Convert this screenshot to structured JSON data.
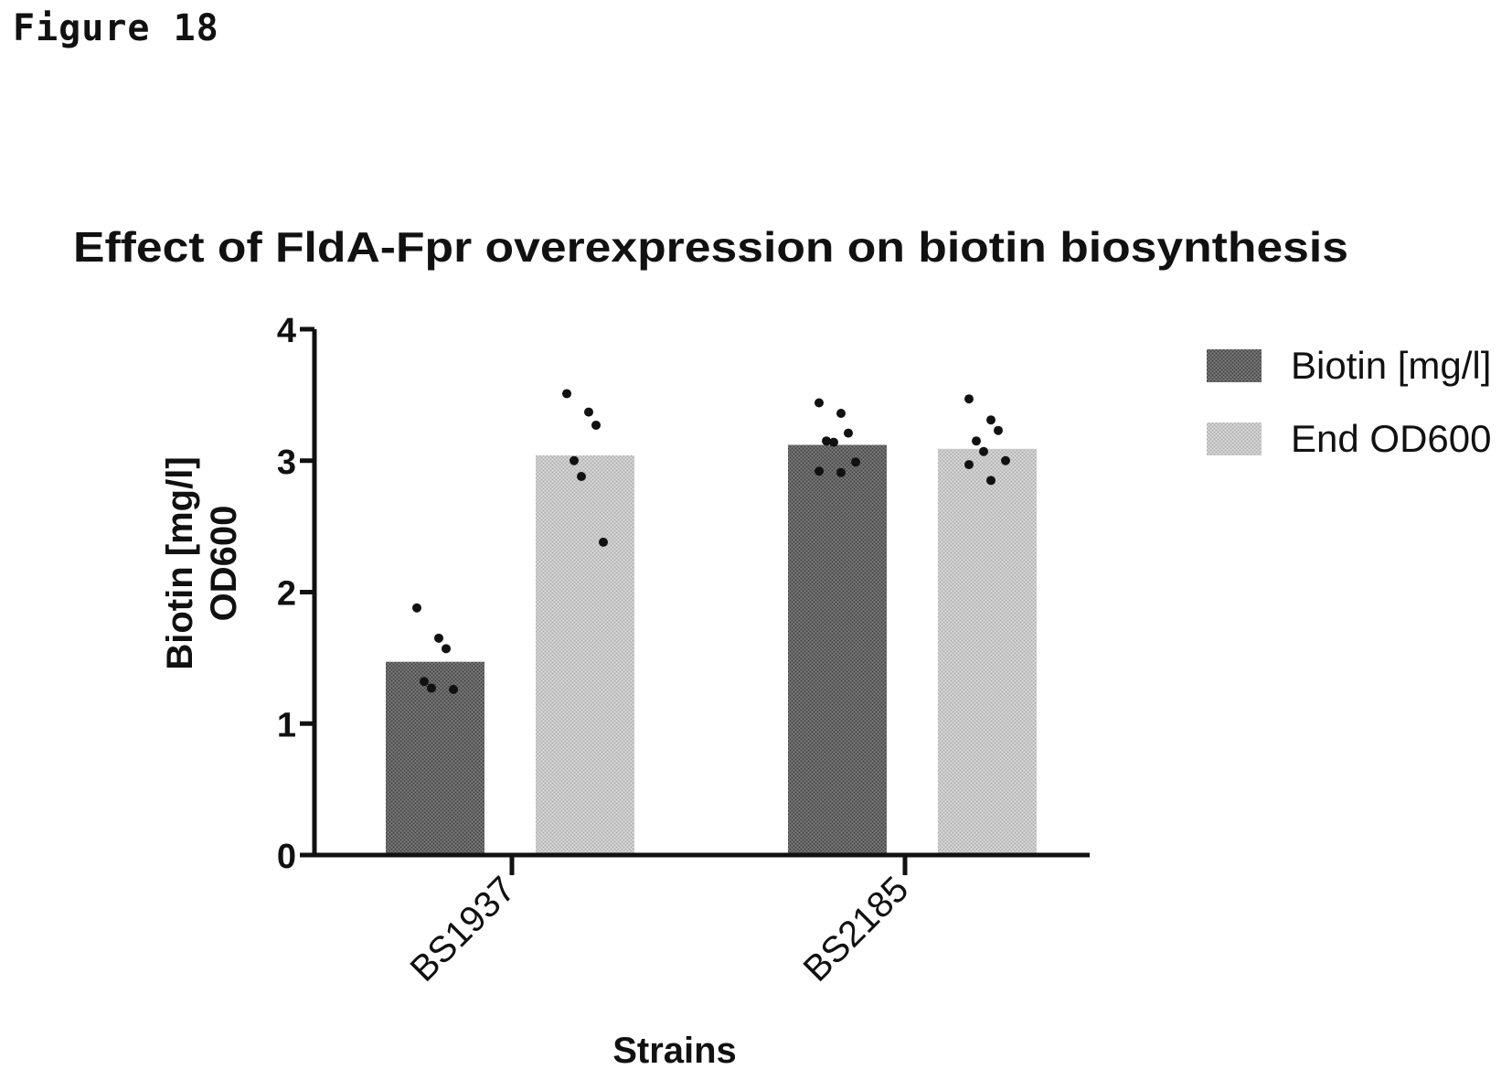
{
  "figure_label": "Figure 18",
  "colors": {
    "biotin": "#5a5a5a",
    "end_od600": "#c4c4c4",
    "axis": "#111111",
    "points": "#111111"
  },
  "chart_data": {
    "type": "bar",
    "title": "Effect of FldA-Fpr overexpression on biotin biosynthesis",
    "xlabel": "Strains",
    "ylabel": [
      "Biotin [mg/l]",
      "OD600"
    ],
    "categories": [
      "BS1937",
      "BS2185"
    ],
    "ylim": [
      0,
      4
    ],
    "yticks": [
      "0",
      "1",
      "2",
      "3",
      "4"
    ],
    "grid": false,
    "legend_position": "top-right",
    "series": [
      {
        "name": "Biotin [mg/l]",
        "color": "#5a5a5a",
        "values": [
          1.47,
          3.12
        ],
        "points": [
          [
            1.88,
            1.65,
            1.57,
            1.32,
            1.27,
            1.26
          ],
          [
            3.44,
            3.36,
            3.21,
            3.15,
            3.14,
            2.99,
            2.92,
            2.91
          ]
        ]
      },
      {
        "name": "End OD600",
        "color": "#c4c4c4",
        "values": [
          3.04,
          3.09
        ],
        "points": [
          [
            3.51,
            3.37,
            3.27,
            3.0,
            2.88,
            2.38
          ],
          [
            3.47,
            3.31,
            3.23,
            3.15,
            3.07,
            3.0,
            2.97,
            2.85
          ]
        ]
      }
    ]
  }
}
